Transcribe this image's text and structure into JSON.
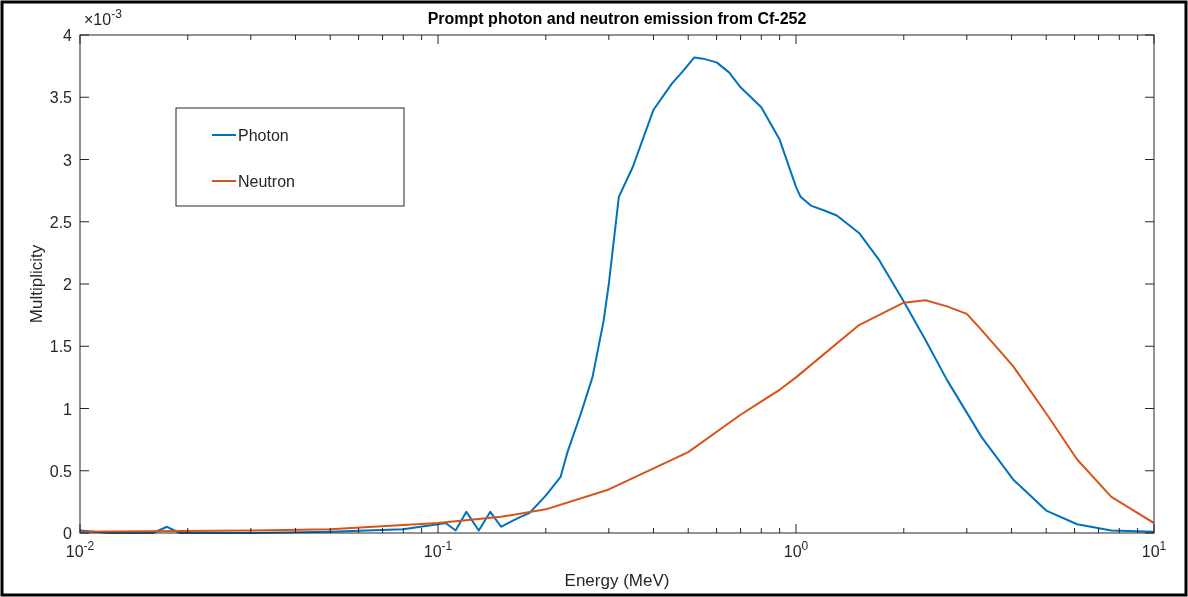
{
  "chart_data": {
    "type": "line",
    "title": "Prompt photon and neutron emission from Cf-252",
    "xlabel": "Energy (MeV)",
    "ylabel": "Multiplicity",
    "annotations": [
      "×10$^{-3}$"
    ],
    "log": "x",
    "legend": "top left",
    "line_style": "solid",
    "marker": "none",
    "grid": false,
    "xlim": [
      0.01,
      10
    ],
    "xticks": [
      {
        "value": 0.01,
        "label": "10$^{-2}$"
      },
      {
        "value": 0.02,
        "label": null
      },
      {
        "value": 0.03,
        "label": null
      },
      {
        "value": 0.04,
        "label": null
      },
      {
        "value": 0.05,
        "label": null
      },
      {
        "value": 0.06,
        "label": null
      },
      {
        "value": 0.07,
        "label": null
      },
      {
        "value": 0.08,
        "label": null
      },
      {
        "value": 0.09,
        "label": null
      },
      {
        "value": 0.1,
        "label": "10$^{-1}$"
      },
      {
        "value": 0.2,
        "label": null
      },
      {
        "value": 0.3,
        "label": null
      },
      {
        "value": 0.4,
        "label": null
      },
      {
        "value": 0.5,
        "label": null
      },
      {
        "value": 0.6,
        "label": null
      },
      {
        "value": 0.7,
        "label": null
      },
      {
        "value": 0.8,
        "label": null
      },
      {
        "value": 0.9,
        "label": null
      },
      {
        "value": 1,
        "label": "10$^{0}$"
      },
      {
        "value": 2,
        "label": null
      },
      {
        "value": 3,
        "label": null
      },
      {
        "value": 4,
        "label": null
      },
      {
        "value": 5,
        "label": null
      },
      {
        "value": 6,
        "label": null
      },
      {
        "value": 7,
        "label": null
      },
      {
        "value": 8,
        "label": null
      },
      {
        "value": 9,
        "label": null
      },
      {
        "value": 10,
        "label": "10$^{1}$"
      }
    ],
    "ylim": [
      0,
      4
    ],
    "yticks": [
      0,
      0.5,
      1,
      1.5,
      2,
      2.5,
      3,
      3.5,
      4
    ],
    "series": [
      {
        "name": "Photon",
        "color": "#0072bd",
        "x": [
          0.01,
          0.012,
          0.016,
          0.0175,
          0.019,
          0.03,
          0.05,
          0.08,
          0.1,
          0.105,
          0.112,
          0.12,
          0.13,
          0.14,
          0.15,
          0.17,
          0.18,
          0.2,
          0.22,
          0.23,
          0.25,
          0.27,
          0.29,
          0.3,
          0.32,
          0.35,
          0.4,
          0.45,
          0.48,
          0.52,
          0.55,
          0.6,
          0.65,
          0.7,
          0.8,
          0.9,
          1.0,
          1.03,
          1.1,
          1.2,
          1.3,
          1.5,
          1.7,
          2.0,
          2.3,
          2.64,
          3.3,
          4.04,
          5.0,
          6.1,
          7.6,
          10
        ],
        "values": [
          0.02,
          0,
          0,
          0.05,
          0,
          0,
          0.01,
          0.03,
          0.07,
          0.08,
          0.02,
          0.17,
          0.02,
          0.17,
          0.05,
          0.13,
          0.16,
          0.3,
          0.45,
          0.65,
          0.95,
          1.25,
          1.7,
          2.0,
          2.7,
          2.94,
          3.4,
          3.61,
          3.7,
          3.82,
          3.81,
          3.78,
          3.7,
          3.58,
          3.42,
          3.16,
          2.78,
          2.7,
          2.63,
          2.59,
          2.55,
          2.41,
          2.2,
          1.86,
          1.55,
          1.23,
          0.77,
          0.43,
          0.18,
          0.07,
          0.02,
          0.01
        ]
      },
      {
        "name": "Neutron",
        "color": "#d95319",
        "x": [
          0.01,
          0.03,
          0.05,
          0.1,
          0.15,
          0.2,
          0.3,
          0.5,
          0.7,
          0.9,
          1.0,
          1.5,
          2.0,
          2.3,
          2.64,
          3.0,
          3.3,
          4.04,
          5.0,
          6.1,
          7.6,
          10
        ],
        "values": [
          0.01,
          0.02,
          0.03,
          0.08,
          0.13,
          0.19,
          0.35,
          0.65,
          0.95,
          1.15,
          1.25,
          1.67,
          1.85,
          1.87,
          1.82,
          1.76,
          1.63,
          1.34,
          0.96,
          0.59,
          0.29,
          0.08
        ]
      }
    ]
  }
}
